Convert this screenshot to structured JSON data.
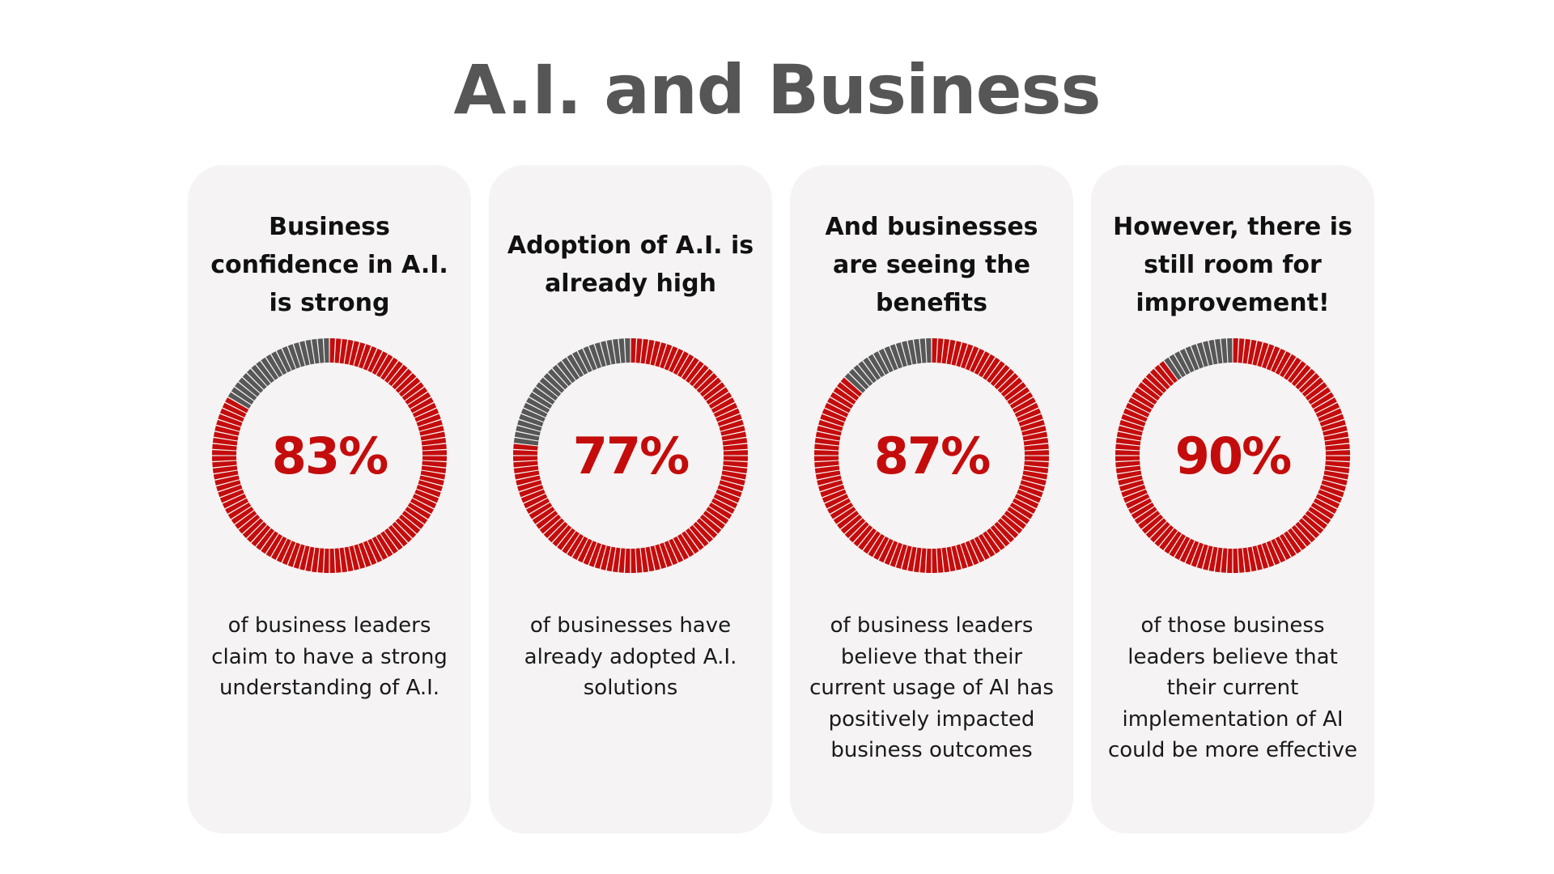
{
  "title": "A.I. and Business",
  "colors": {
    "filled": "#c40c0c",
    "remaining": "#575757",
    "card_background": "#f5f3f3",
    "title": "#565656"
  },
  "cards": [
    {
      "heading": "Business confidence in A.I. is strong",
      "value_label": "83%",
      "description": "of business leaders claim to have a strong understanding of A.I."
    },
    {
      "heading": "Adoption of A.I. is already high",
      "value_label": "77%",
      "description": "of businesses have already adopted A.I. solutions"
    },
    {
      "heading": "And businesses are seeing the benefits",
      "value_label": "87%",
      "description": "of business leaders believe that their current usage of AI has positively impacted business outcomes"
    },
    {
      "heading": "However, there is still room for improvement!",
      "value_label": "90%",
      "description": "of those business leaders believe that their current implementation of AI could be more effective"
    }
  ],
  "chart_data": [
    {
      "type": "pie",
      "categories": [
        "",
        ""
      ],
      "values": [
        83,
        17
      ]
    },
    {
      "type": "pie",
      "categories": [
        "",
        ""
      ],
      "values": [
        77,
        23
      ]
    },
    {
      "type": "pie",
      "categories": [
        "",
        ""
      ],
      "values": [
        87,
        13
      ]
    },
    {
      "type": "pie",
      "categories": [
        "",
        ""
      ],
      "values": [
        90,
        10
      ]
    }
  ]
}
